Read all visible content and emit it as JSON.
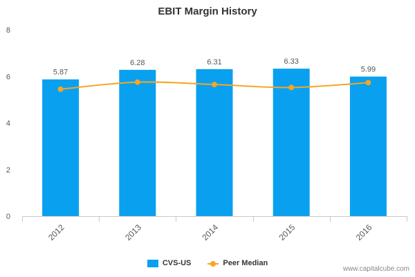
{
  "chart_data": {
    "type": "bar",
    "title": "EBIT Margin History",
    "categories": [
      "2012",
      "2013",
      "2014",
      "2015",
      "2016"
    ],
    "series": [
      {
        "name": "CVS-US",
        "type": "bar",
        "values": [
          5.87,
          6.28,
          6.31,
          6.33,
          5.99
        ],
        "color": "#0aa0f0"
      },
      {
        "name": "Peer Median",
        "type": "line",
        "values": [
          5.45,
          5.75,
          5.65,
          5.52,
          5.73
        ],
        "color": "#f5a623"
      }
    ],
    "data_labels": [
      "5.87",
      "6.28",
      "6.31",
      "6.33",
      "5.99"
    ],
    "ylim": [
      0,
      8
    ],
    "yticks": [
      0,
      2,
      4,
      6,
      8
    ],
    "grid": false,
    "legend": "bottom-center"
  },
  "credit": "www.capitalcube.com"
}
